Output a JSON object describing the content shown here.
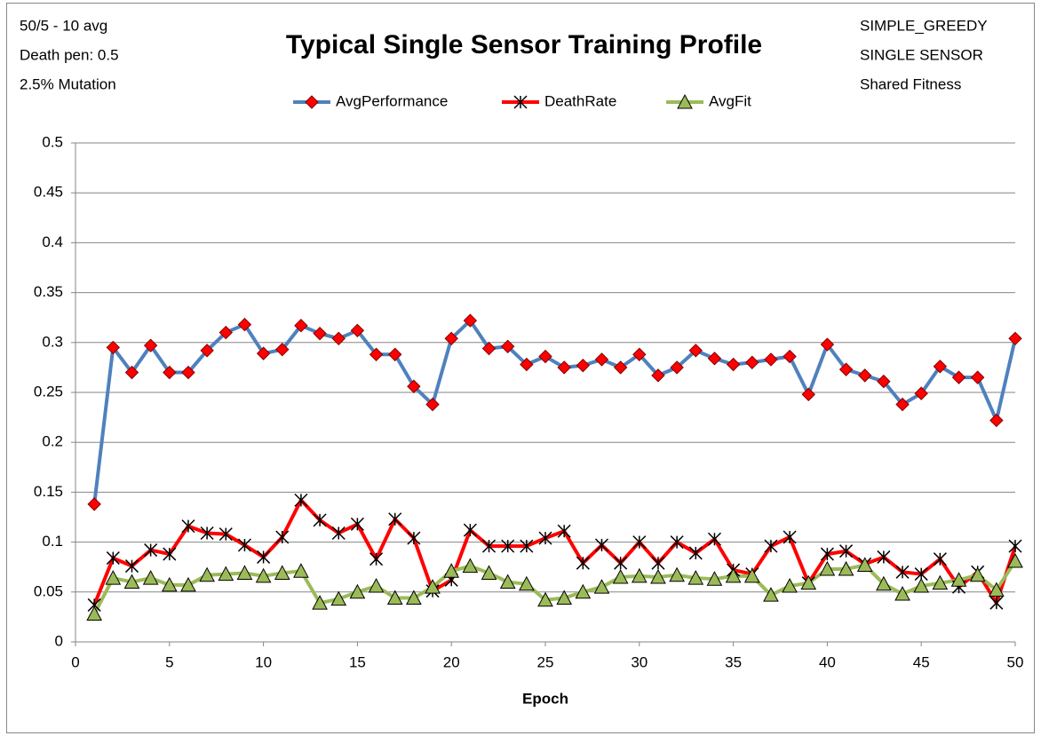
{
  "chart_data": {
    "type": "line",
    "title": "Typical Single Sensor Training Profile",
    "annotations_left": [
      "50/5 - 10 avg",
      "Death pen: 0.5",
      "2.5% Mutation"
    ],
    "annotations_right": [
      "SIMPLE_GREEDY",
      "SINGLE SENSOR",
      "Shared Fitness"
    ],
    "x_label": "Epoch",
    "x": [
      1,
      2,
      3,
      4,
      5,
      6,
      7,
      8,
      9,
      10,
      11,
      12,
      13,
      14,
      15,
      16,
      17,
      18,
      19,
      20,
      21,
      22,
      23,
      24,
      25,
      26,
      27,
      28,
      29,
      30,
      31,
      32,
      33,
      34,
      35,
      36,
      37,
      38,
      39,
      40,
      41,
      42,
      43,
      44,
      45,
      46,
      47,
      48,
      49,
      50
    ],
    "xlim": [
      0,
      50
    ],
    "xticks": [
      0,
      5,
      10,
      15,
      20,
      25,
      30,
      35,
      40,
      45,
      50
    ],
    "ylim": [
      0,
      0.5
    ],
    "yticks": [
      0,
      0.05,
      0.1,
      0.15,
      0.2,
      0.25,
      0.3,
      0.35,
      0.4,
      0.45,
      0.5
    ],
    "grid": true,
    "legend": "top",
    "series": [
      {
        "name": "AvgPerformance",
        "color": "#4f81bd",
        "marker": "diamond",
        "marker_color": "#ff0000",
        "values": [
          0.138,
          0.295,
          0.27,
          0.297,
          0.27,
          0.27,
          0.292,
          0.31,
          0.318,
          0.289,
          0.293,
          0.317,
          0.309,
          0.304,
          0.312,
          0.288,
          0.288,
          0.256,
          0.238,
          0.304,
          0.322,
          0.294,
          0.296,
          0.278,
          0.286,
          0.275,
          0.277,
          0.283,
          0.275,
          0.288,
          0.267,
          0.275,
          0.292,
          0.284,
          0.278,
          0.28,
          0.283,
          0.286,
          0.248,
          0.298,
          0.273,
          0.267,
          0.261,
          0.238,
          0.249,
          0.276,
          0.265,
          0.265,
          0.222,
          0.304
        ]
      },
      {
        "name": "DeathRate",
        "color": "#ff0000",
        "marker": "asterisk",
        "marker_color": "#000000",
        "values": [
          0.037,
          0.084,
          0.076,
          0.092,
          0.088,
          0.116,
          0.109,
          0.108,
          0.097,
          0.085,
          0.105,
          0.142,
          0.122,
          0.109,
          0.118,
          0.083,
          0.123,
          0.104,
          0.051,
          0.062,
          0.112,
          0.096,
          0.096,
          0.096,
          0.104,
          0.111,
          0.079,
          0.097,
          0.079,
          0.1,
          0.079,
          0.1,
          0.089,
          0.103,
          0.072,
          0.068,
          0.096,
          0.105,
          0.059,
          0.088,
          0.091,
          0.078,
          0.085,
          0.07,
          0.068,
          0.083,
          0.055,
          0.07,
          0.039,
          0.096
        ]
      },
      {
        "name": "AvgFit",
        "color": "#9bbb59",
        "marker": "triangle",
        "marker_color": "#9bbb59",
        "values": [
          0.028,
          0.064,
          0.06,
          0.064,
          0.057,
          0.057,
          0.067,
          0.068,
          0.069,
          0.066,
          0.069,
          0.071,
          0.039,
          0.043,
          0.05,
          0.056,
          0.044,
          0.044,
          0.055,
          0.071,
          0.076,
          0.069,
          0.06,
          0.058,
          0.042,
          0.044,
          0.05,
          0.055,
          0.065,
          0.066,
          0.065,
          0.067,
          0.064,
          0.063,
          0.066,
          0.066,
          0.047,
          0.056,
          0.059,
          0.073,
          0.073,
          0.077,
          0.058,
          0.048,
          0.056,
          0.059,
          0.062,
          0.067,
          0.052,
          0.081
        ]
      }
    ]
  }
}
